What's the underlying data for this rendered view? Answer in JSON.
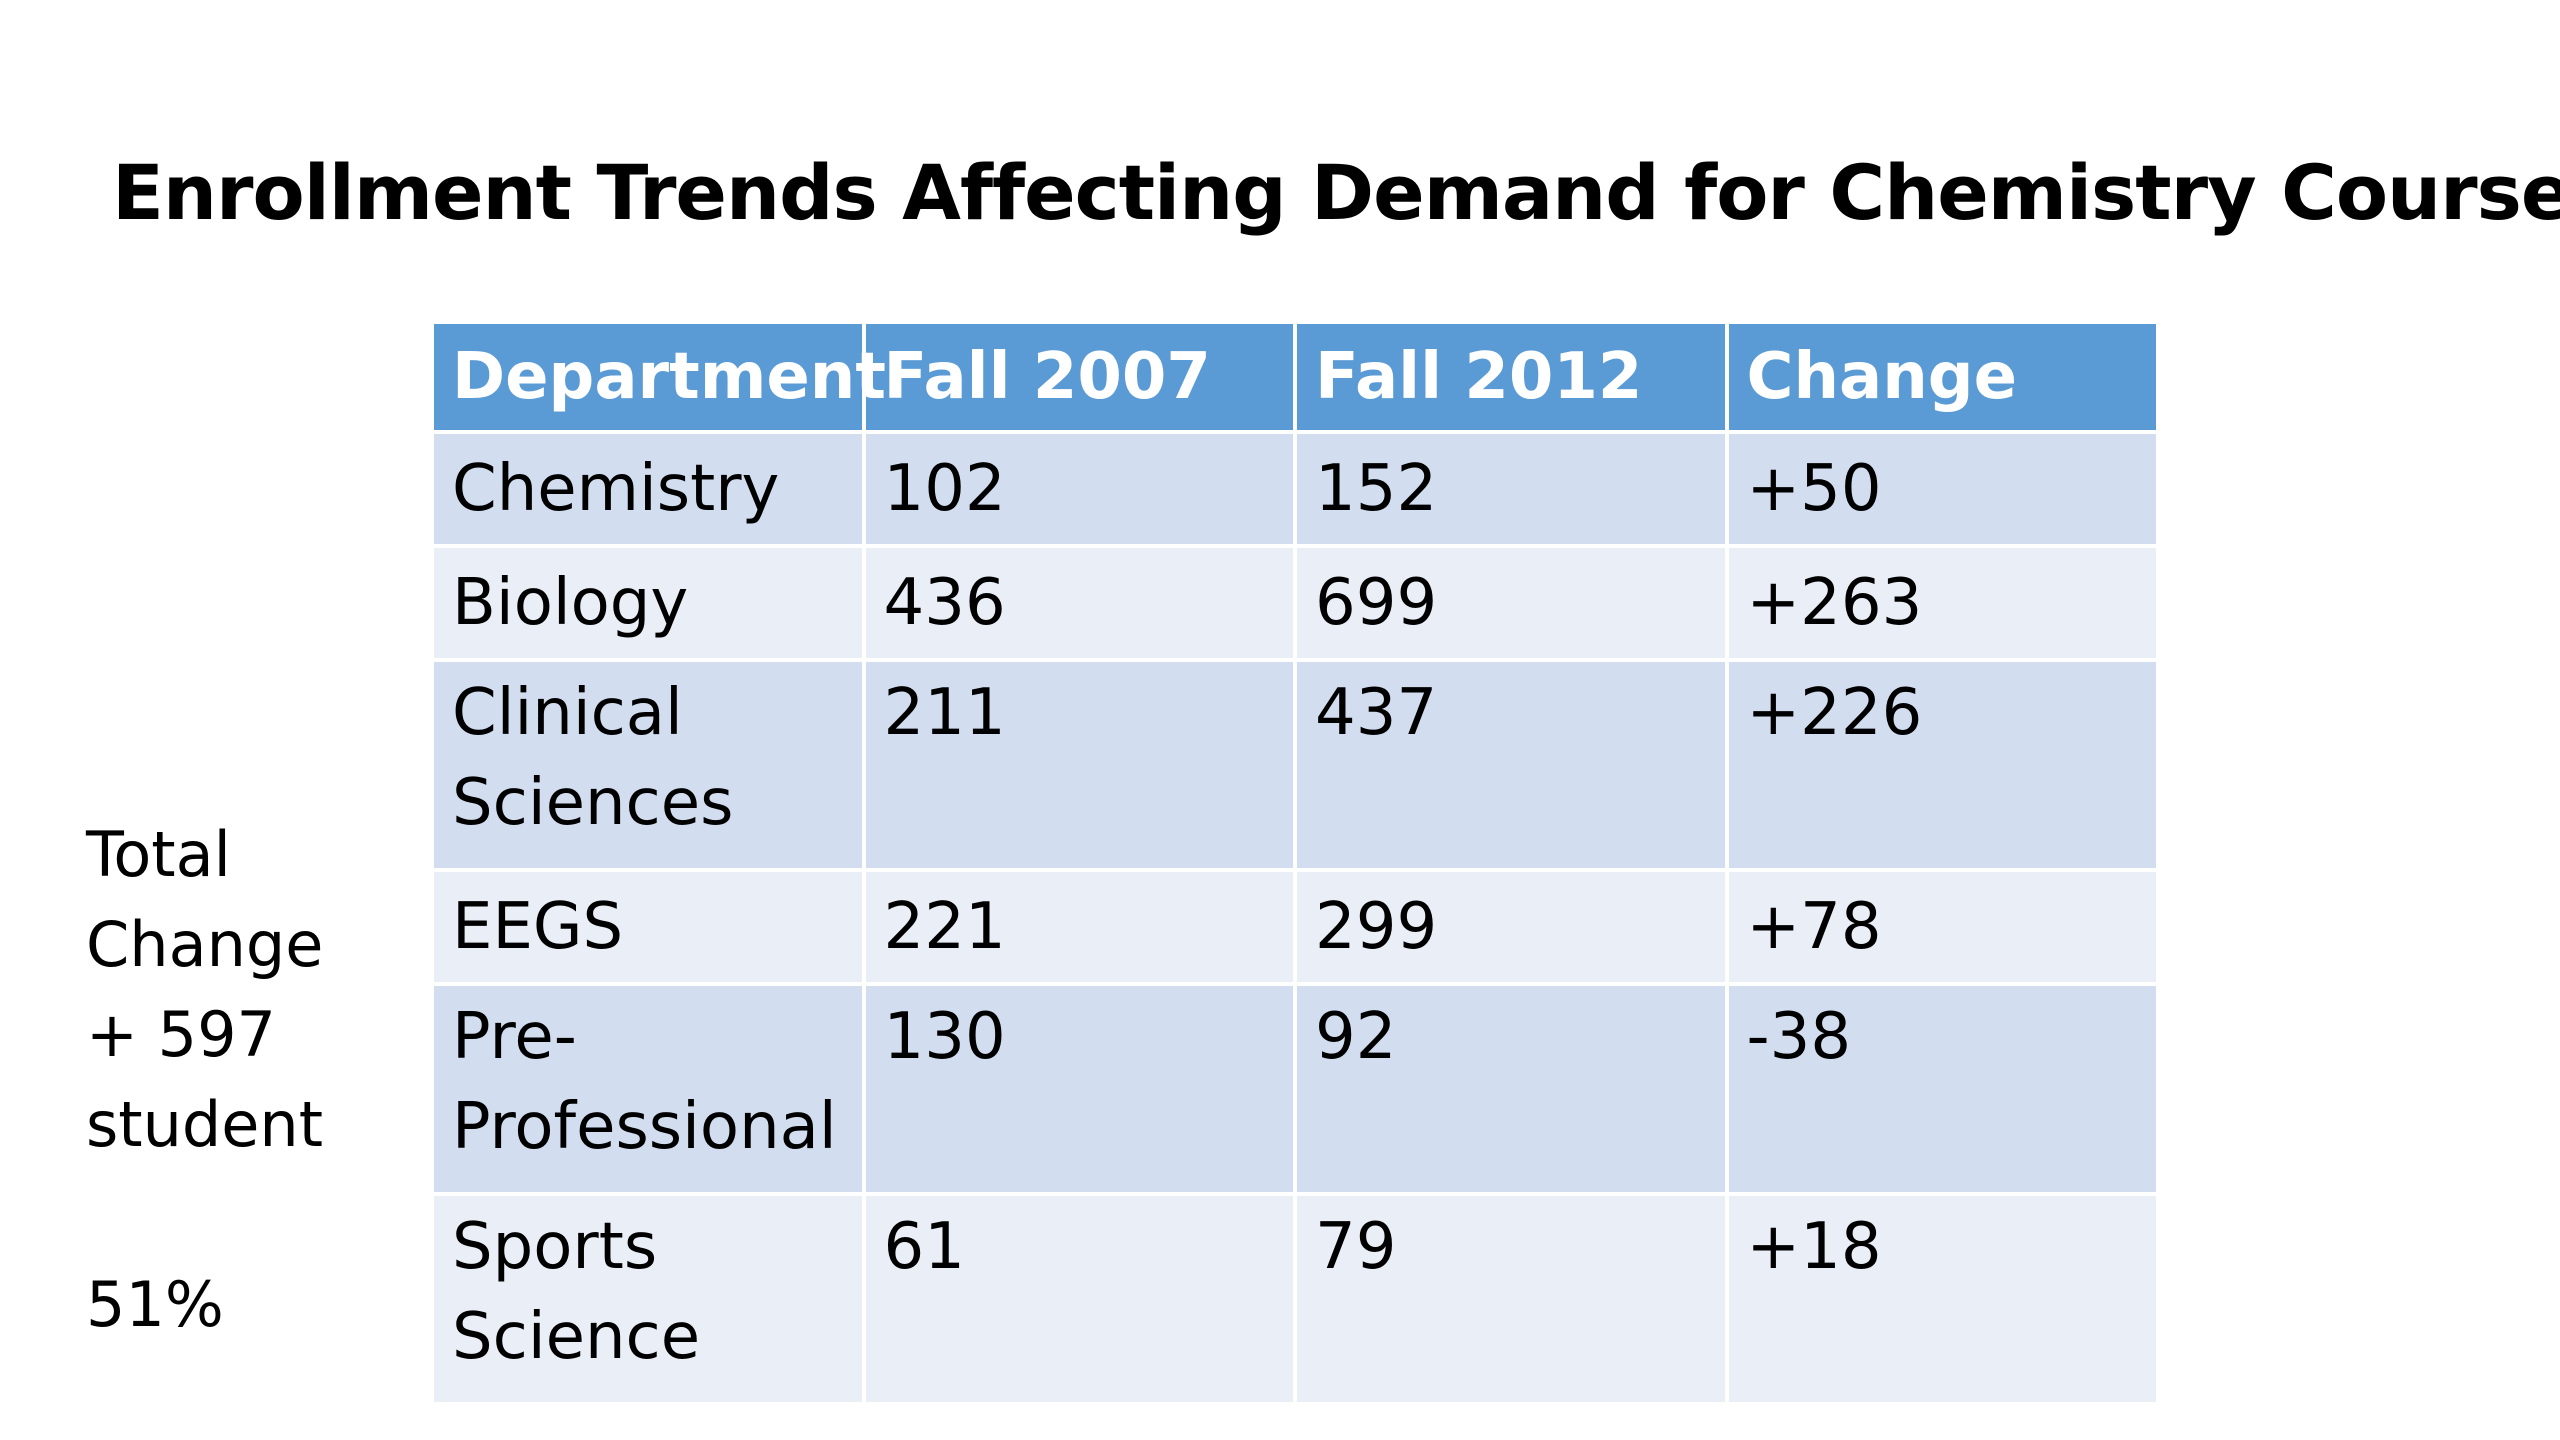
{
  "title": "Enrollment Trends Affecting Demand for Chemistry Courses",
  "side_note": {
    "lines": [
      "Total",
      "Change",
      "+ 597",
      "student"
    ],
    "percent": "51%"
  },
  "table": {
    "headers": [
      "Department",
      "Fall 2007",
      "Fall 2012",
      "Change"
    ],
    "rows": [
      {
        "department": "Chemistry",
        "fall_2007": "102",
        "fall_2012": "152",
        "change": "+50"
      },
      {
        "department": "Biology",
        "fall_2007": "436",
        "fall_2012": "699",
        "change": "+263"
      },
      {
        "department": "Clinical Sciences",
        "fall_2007": "211",
        "fall_2012": "437",
        "change": "+226"
      },
      {
        "department": "EEGS",
        "fall_2007": "221",
        "fall_2012": "299",
        "change": "+78"
      },
      {
        "department": "Pre-Professional",
        "fall_2007": "130",
        "fall_2012": "92",
        "change": "-38"
      },
      {
        "department": "Sports Science",
        "fall_2007": "61",
        "fall_2012": "79",
        "change": "+18"
      }
    ]
  },
  "colors": {
    "header_bg": "#5b9bd5",
    "row_dark": "#d2deef",
    "row_light": "#eaeff7"
  }
}
